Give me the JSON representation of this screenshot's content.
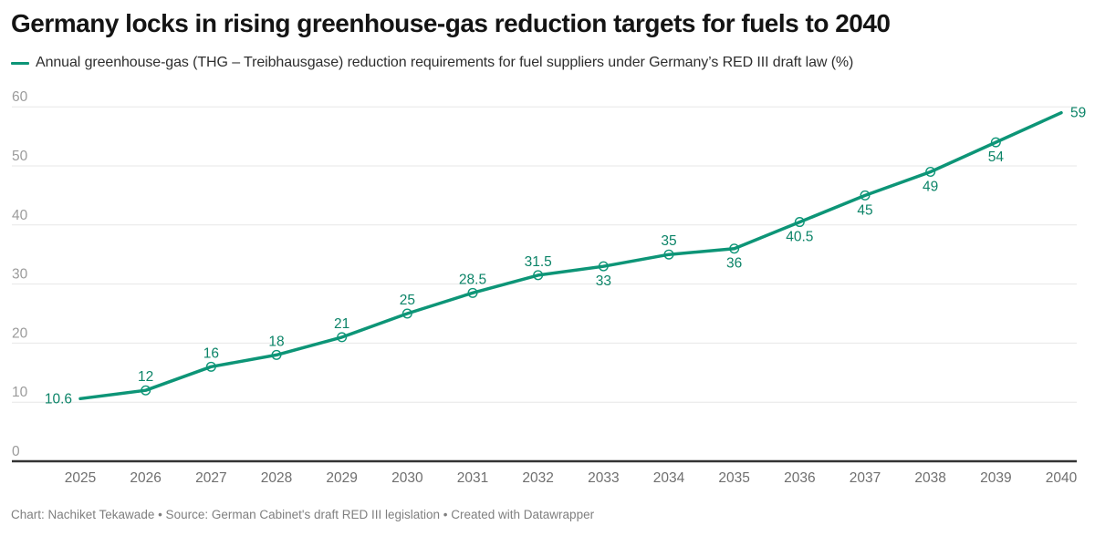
{
  "header": {
    "title": "Germany locks in rising greenhouse-gas reduction targets for fuels to 2040"
  },
  "legend": {
    "swatch_color": "#0d9577",
    "label": "Annual greenhouse-gas (THG – Treibhausgase) reduction requirements for fuel suppliers under Germany’s RED III draft law (%)"
  },
  "footer": {
    "text": "Chart: Nachiket Tekawade • Source: German Cabinet's draft RED III legislation • Created with Datawrapper"
  },
  "chart_data": {
    "type": "line",
    "title": "Germany locks in rising greenhouse-gas reduction targets for fuels to 2040",
    "legend_label": "Annual greenhouse-gas (THG – Treibhausgase) reduction requirements for fuel suppliers under Germany’s RED III draft law (%)",
    "legend_position": "top-left",
    "grid": "horizontal",
    "xlabel": "",
    "ylabel": "",
    "ylim": [
      0,
      60
    ],
    "yticks": [
      0,
      10,
      20,
      30,
      40,
      50,
      60
    ],
    "x": [
      2025,
      2026,
      2027,
      2028,
      2029,
      2030,
      2031,
      2032,
      2033,
      2034,
      2035,
      2036,
      2037,
      2038,
      2039,
      2040
    ],
    "series": [
      {
        "name": "Annual greenhouse-gas (THG – Treibhausgase) reduction requirements for fuel suppliers under Germany’s RED III draft law (%)",
        "values": [
          10.6,
          12,
          16,
          18,
          21,
          25,
          28.5,
          31.5,
          33,
          35,
          36,
          40.5,
          45,
          49,
          54,
          59
        ]
      }
    ],
    "points": [
      {
        "year": "2025",
        "value": 10.6,
        "label": "10.6",
        "label_pos": "left",
        "marker": false
      },
      {
        "year": "2026",
        "value": 12,
        "label": "12",
        "label_pos": "above",
        "marker": true
      },
      {
        "year": "2027",
        "value": 16,
        "label": "16",
        "label_pos": "above",
        "marker": true
      },
      {
        "year": "2028",
        "value": 18,
        "label": "18",
        "label_pos": "above",
        "marker": true
      },
      {
        "year": "2029",
        "value": 21,
        "label": "21",
        "label_pos": "above",
        "marker": true
      },
      {
        "year": "2030",
        "value": 25,
        "label": "25",
        "label_pos": "above",
        "marker": true
      },
      {
        "year": "2031",
        "value": 28.5,
        "label": "28.5",
        "label_pos": "above",
        "marker": true
      },
      {
        "year": "2032",
        "value": 31.5,
        "label": "31.5",
        "label_pos": "above",
        "marker": true
      },
      {
        "year": "2033",
        "value": 33,
        "label": "33",
        "label_pos": "below",
        "marker": true
      },
      {
        "year": "2034",
        "value": 35,
        "label": "35",
        "label_pos": "above",
        "marker": true
      },
      {
        "year": "2035",
        "value": 36,
        "label": "36",
        "label_pos": "below",
        "marker": true
      },
      {
        "year": "2036",
        "value": 40.5,
        "label": "40.5",
        "label_pos": "below",
        "marker": true
      },
      {
        "year": "2037",
        "value": 45,
        "label": "45",
        "label_pos": "below",
        "marker": true
      },
      {
        "year": "2038",
        "value": 49,
        "label": "49",
        "label_pos": "below",
        "marker": true
      },
      {
        "year": "2039",
        "value": 54,
        "label": "54",
        "label_pos": "below",
        "marker": true
      },
      {
        "year": "2040",
        "value": 59,
        "label": "59",
        "label_pos": "right",
        "marker": false
      }
    ],
    "colors": {
      "line": "#0d9577",
      "data_label": "#0c8468",
      "grid": "#e7e7e7",
      "axis": "#333333",
      "y_tick": "#9b9b9b",
      "x_tick": "#6f6f6f"
    }
  }
}
